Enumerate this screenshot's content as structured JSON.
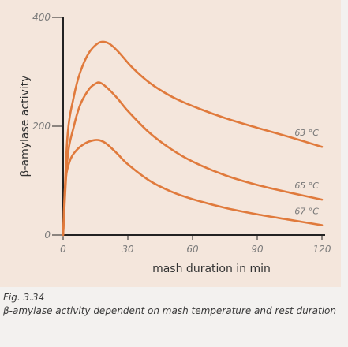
{
  "chart_data": {
    "type": "line",
    "xlabel": "mash duration in min",
    "ylabel": "β-amylase activity",
    "xlim": [
      0,
      120
    ],
    "ylim": [
      0,
      400
    ],
    "xticks": [
      0,
      30,
      60,
      90,
      120
    ],
    "yticks": [
      0,
      200,
      400
    ],
    "grid": false,
    "series": [
      {
        "name": "63 °C",
        "color": "#e07a3c",
        "x": [
          0,
          2,
          5,
          8,
          12,
          16,
          19,
          22,
          26,
          32,
          40,
          50,
          60,
          75,
          90,
          105,
          120
        ],
        "y": [
          0,
          180,
          255,
          300,
          335,
          352,
          355,
          350,
          335,
          308,
          280,
          255,
          237,
          215,
          197,
          180,
          162
        ]
      },
      {
        "name": "65 °C",
        "color": "#e07a3c",
        "x": [
          0,
          2,
          5,
          8,
          12,
          15,
          17,
          20,
          25,
          30,
          40,
          50,
          60,
          75,
          90,
          105,
          120
        ],
        "y": [
          0,
          140,
          200,
          240,
          268,
          278,
          280,
          272,
          252,
          228,
          188,
          158,
          135,
          110,
          92,
          78,
          65
        ]
      },
      {
        "name": "67 °C",
        "color": "#e07a3c",
        "x": [
          0,
          1,
          3,
          6,
          10,
          14,
          17,
          20,
          25,
          30,
          40,
          50,
          60,
          75,
          90,
          105,
          120
        ],
        "y": [
          0,
          95,
          135,
          155,
          168,
          174,
          174,
          168,
          150,
          130,
          100,
          80,
          66,
          50,
          38,
          28,
          18
        ]
      }
    ]
  },
  "caption": {
    "figure_number": "Fig. 3.34",
    "text": "β-amylase activity dependent on mash temperature and rest duration"
  }
}
